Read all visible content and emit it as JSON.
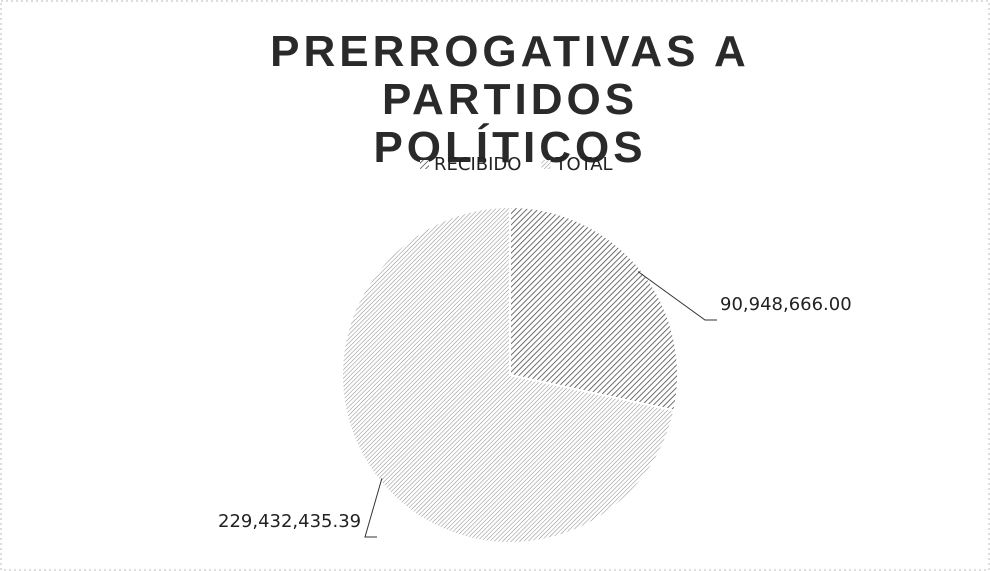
{
  "chart_data": {
    "type": "pie",
    "title": "PRERROGATIVAS A PARTIDOS POLÍTICOS",
    "categories": [
      "RECIBIDO",
      "TOTAL"
    ],
    "values": [
      90948666.0,
      229432435.39
    ],
    "value_labels": [
      "90,948,666.00",
      "229,432,435.39"
    ],
    "colors": [
      "#4a4a4a",
      "#8a8a8a"
    ]
  }
}
